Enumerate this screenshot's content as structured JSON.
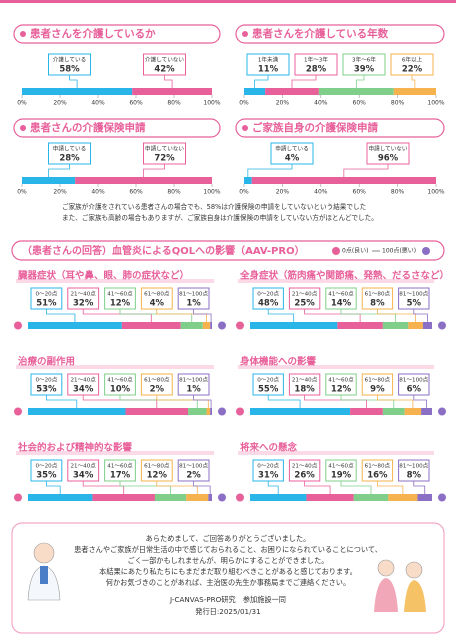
{
  "chart_data": [
    {
      "type": "stacked_bar",
      "title": "患者さんを介護しているか",
      "xlim": [
        0,
        100
      ],
      "xticks": [
        {
          "value": 0,
          "label": "0%"
        },
        {
          "value": 20,
          "label": "20%"
        },
        {
          "value": 40,
          "label": "40%"
        },
        {
          "value": 60,
          "label": "60%"
        },
        {
          "value": 80,
          "label": "80%"
        },
        {
          "value": 100,
          "label": "100%"
        }
      ],
      "series": [
        {
          "name": "介護している",
          "color": "#29b5e8",
          "values": [
            58
          ],
          "value_labels": [
            "58%"
          ]
        },
        {
          "name": "介護していない",
          "color": "#e8609a",
          "values": [
            42
          ],
          "value_labels": [
            "42%"
          ]
        }
      ]
    },
    {
      "type": "stacked_bar",
      "title": "患者さんを介護している年数",
      "xlim": [
        0,
        100
      ],
      "xticks": [
        {
          "value": 0,
          "label": "0%"
        },
        {
          "value": 20,
          "label": "20%"
        },
        {
          "value": 40,
          "label": "40%"
        },
        {
          "value": 60,
          "label": "60%"
        },
        {
          "value": 80,
          "label": "80%"
        },
        {
          "value": 100,
          "label": "100%"
        }
      ],
      "series": [
        {
          "name": "1年未満",
          "color": "#29b5e8",
          "values": [
            11
          ],
          "value_labels": [
            "11%"
          ]
        },
        {
          "name": "1年～3年",
          "color": "#e8609a",
          "values": [
            28
          ],
          "value_labels": [
            "28%"
          ]
        },
        {
          "name": "3年～6年",
          "color": "#7fcf8a",
          "values": [
            39
          ],
          "value_labels": [
            "39%"
          ]
        },
        {
          "name": "6年以上",
          "color": "#f5b24e",
          "values": [
            22
          ],
          "value_labels": [
            "22%"
          ]
        }
      ]
    },
    {
      "type": "stacked_bar",
      "title": "患者さんの介護保険申請",
      "xlim": [
        0,
        100
      ],
      "xticks": [
        {
          "value": 0,
          "label": "0%"
        },
        {
          "value": 20,
          "label": "20%"
        },
        {
          "value": 40,
          "label": "40%"
        },
        {
          "value": 60,
          "label": "60%"
        },
        {
          "value": 80,
          "label": "80%"
        },
        {
          "value": 100,
          "label": "100%"
        }
      ],
      "series": [
        {
          "name": "申請している",
          "color": "#29b5e8",
          "values": [
            28
          ],
          "value_labels": [
            "28%"
          ]
        },
        {
          "name": "申請していない",
          "color": "#e8609a",
          "values": [
            72
          ],
          "value_labels": [
            "72%"
          ]
        }
      ]
    },
    {
      "type": "stacked_bar",
      "title": "ご家族自身の介護保険申請",
      "xlim": [
        0,
        100
      ],
      "xticks": [
        {
          "value": 0,
          "label": "0%"
        },
        {
          "value": 20,
          "label": "20%"
        },
        {
          "value": 40,
          "label": "40%"
        },
        {
          "value": 60,
          "label": "60%"
        },
        {
          "value": 80,
          "label": "80%"
        },
        {
          "value": 100,
          "label": "100%"
        }
      ],
      "series": [
        {
          "name": "申請している",
          "color": "#29b5e8",
          "values": [
            4
          ],
          "value_labels": [
            "4%"
          ]
        },
        {
          "name": "申請していない",
          "color": "#e8609a",
          "values": [
            96
          ],
          "value_labels": [
            "96%"
          ]
        }
      ]
    },
    {
      "type": "stacked_bar",
      "title": "臓器症状（耳や鼻、眼、肺の症状など）",
      "xlim": [
        0,
        100
      ],
      "series": [
        {
          "name": "0～20点",
          "color": "#29b5e8",
          "values": [
            51
          ],
          "value_labels": [
            "51%"
          ]
        },
        {
          "name": "21～40点",
          "color": "#e8609a",
          "values": [
            32
          ],
          "value_labels": [
            "32%"
          ]
        },
        {
          "name": "41～60点",
          "color": "#7fcf8a",
          "values": [
            12
          ],
          "value_labels": [
            "12%"
          ]
        },
        {
          "name": "61～80点",
          "color": "#f5b24e",
          "values": [
            4
          ],
          "value_labels": [
            "4%"
          ]
        },
        {
          "name": "81～100点",
          "color": "#8a6fc4",
          "values": [
            1
          ],
          "value_labels": [
            "1%"
          ]
        }
      ]
    },
    {
      "type": "stacked_bar",
      "title": "全身症状（筋肉痛や関節痛、発熱、だるさなど）",
      "xlim": [
        0,
        100
      ],
      "series": [
        {
          "name": "0～20点",
          "color": "#29b5e8",
          "values": [
            48
          ],
          "value_labels": [
            "48%"
          ]
        },
        {
          "name": "21～40点",
          "color": "#e8609a",
          "values": [
            25
          ],
          "value_labels": [
            "25%"
          ]
        },
        {
          "name": "41～60点",
          "color": "#7fcf8a",
          "values": [
            14
          ],
          "value_labels": [
            "14%"
          ]
        },
        {
          "name": "61～80点",
          "color": "#f5b24e",
          "values": [
            8
          ],
          "value_labels": [
            "8%"
          ]
        },
        {
          "name": "81～100点",
          "color": "#8a6fc4",
          "values": [
            5
          ],
          "value_labels": [
            "5%"
          ]
        }
      ]
    },
    {
      "type": "stacked_bar",
      "title": "治療の副作用",
      "xlim": [
        0,
        100
      ],
      "series": [
        {
          "name": "0～20点",
          "color": "#29b5e8",
          "values": [
            53
          ],
          "value_labels": [
            "53%"
          ]
        },
        {
          "name": "21～40点",
          "color": "#e8609a",
          "values": [
            34
          ],
          "value_labels": [
            "34%"
          ]
        },
        {
          "name": "41～60点",
          "color": "#7fcf8a",
          "values": [
            10
          ],
          "value_labels": [
            "10%"
          ]
        },
        {
          "name": "61～80点",
          "color": "#f5b24e",
          "values": [
            2
          ],
          "value_labels": [
            "2%"
          ]
        },
        {
          "name": "81～100点",
          "color": "#8a6fc4",
          "values": [
            1
          ],
          "value_labels": [
            "1%"
          ]
        }
      ]
    },
    {
      "type": "stacked_bar",
      "title": "身体機能への影響",
      "xlim": [
        0,
        100
      ],
      "series": [
        {
          "name": "0～20点",
          "color": "#29b5e8",
          "values": [
            55
          ],
          "value_labels": [
            "55%"
          ]
        },
        {
          "name": "21～40点",
          "color": "#e8609a",
          "values": [
            18
          ],
          "value_labels": [
            "18%"
          ]
        },
        {
          "name": "41～60点",
          "color": "#7fcf8a",
          "values": [
            12
          ],
          "value_labels": [
            "12%"
          ]
        },
        {
          "name": "61～80点",
          "color": "#f5b24e",
          "values": [
            9
          ],
          "value_labels": [
            "9%"
          ]
        },
        {
          "name": "81～100点",
          "color": "#8a6fc4",
          "values": [
            6
          ],
          "value_labels": [
            "6%"
          ]
        }
      ]
    },
    {
      "type": "stacked_bar",
      "title": "社会的および精神的な影響",
      "xlim": [
        0,
        100
      ],
      "series": [
        {
          "name": "0～20点",
          "color": "#29b5e8",
          "values": [
            35
          ],
          "value_labels": [
            "35%"
          ]
        },
        {
          "name": "21～40点",
          "color": "#e8609a",
          "values": [
            34
          ],
          "value_labels": [
            "34%"
          ]
        },
        {
          "name": "41～60点",
          "color": "#7fcf8a",
          "values": [
            17
          ],
          "value_labels": [
            "17%"
          ]
        },
        {
          "name": "61～80点",
          "color": "#f5b24e",
          "values": [
            12
          ],
          "value_labels": [
            "12%"
          ]
        },
        {
          "name": "81～100点",
          "color": "#8a6fc4",
          "values": [
            2
          ],
          "value_labels": [
            "2%"
          ]
        }
      ]
    },
    {
      "type": "stacked_bar",
      "title": "将来への懸念",
      "xlim": [
        0,
        100
      ],
      "series": [
        {
          "name": "0～20点",
          "color": "#29b5e8",
          "values": [
            31
          ],
          "value_labels": [
            "31%"
          ]
        },
        {
          "name": "21～40点",
          "color": "#e8609a",
          "values": [
            26
          ],
          "value_labels": [
            "26%"
          ]
        },
        {
          "name": "41～60点",
          "color": "#7fcf8a",
          "values": [
            19
          ],
          "value_labels": [
            "19%"
          ]
        },
        {
          "name": "61～80点",
          "color": "#f5b24e",
          "values": [
            16
          ],
          "value_labels": [
            "16%"
          ]
        },
        {
          "name": "81～100点",
          "color": "#8a6fc4",
          "values": [
            8
          ],
          "value_labels": [
            "8%"
          ]
        }
      ]
    }
  ],
  "note": [
    "ご家族が介護をされている患者さんの場合でも、58%は介護保険の申請をしていないという結果でした",
    "また、ご家族も高齢の場合もありますが、ご家族自身は介護保険の申請をしていない方がほとんどでした。"
  ],
  "qol_section": {
    "title": "（患者さんの回答）血管炎によるQOLへの影響（AAV-PRO）",
    "legend_good": "0点(良い)",
    "legend_bad": "100点(悪い)"
  },
  "footer": {
    "lines": [
      "あらためまして、ご回答ありがとうございました。",
      "患者さんやご家族が日常生活の中で感じておられること、お困りになられていることについて、",
      "ごく一部かもしれませんが、明らかにすることができました。",
      "本結果にあたり私たちにもまだまだ取り組むべきことがあると感じております。",
      "何かお気づきのことがあれば、主治医の先生か事務局までご連絡ください。"
    ],
    "credit": "J-CANVAS-PRO研究　参加施設一同",
    "date": "発行日:2025/01/31"
  }
}
